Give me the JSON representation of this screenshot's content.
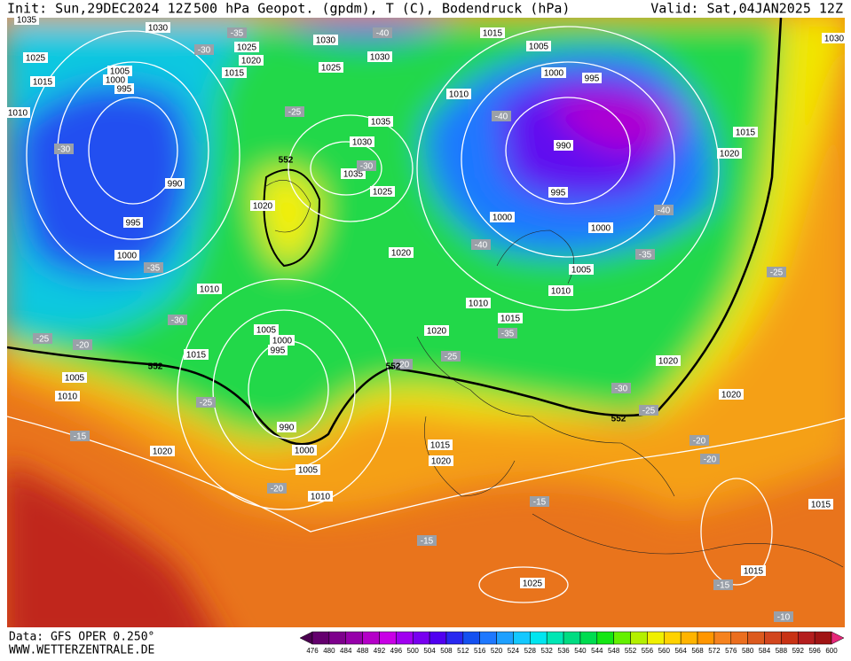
{
  "header": {
    "init": "Init: Sun,29DEC2024 12Z",
    "title": "500 hPa Geopot. (gpdm), T (C), Bodendruck (hPa)",
    "valid": "Valid: Sat,04JAN2025 12Z"
  },
  "footer": {
    "data": "Data: GFS OPER 0.250°",
    "site": "WWW.WETTERZENTRALE.DE"
  },
  "pressure_labels": [
    "1035",
    "1030",
    "1025",
    "1015",
    "1010",
    "1005",
    "1000",
    "995",
    "990",
    "995",
    "1000",
    "1010",
    "1015",
    "1005",
    "1010",
    "1020",
    "1010",
    "1005",
    "1000",
    "990",
    "1005",
    "1000",
    "995",
    "1020",
    "1035",
    "1030",
    "1025",
    "1020",
    "1035",
    "1030",
    "1025",
    "1030",
    "1025",
    "1020",
    "1015",
    "1015",
    "1005",
    "1000",
    "995",
    "1010",
    "990",
    "995",
    "1000",
    "1000",
    "1015",
    "1020",
    "1005",
    "1010",
    "1010",
    "1015",
    "1020",
    "1020",
    "1020",
    "1030",
    "1015",
    "1020",
    "1025",
    "1015",
    "1015"
  ],
  "temperature_labels": [
    "-30",
    "-35",
    "-30",
    "-25",
    "-20",
    "-25",
    "-15",
    "-20",
    "-20",
    "-30",
    "-25",
    "-40",
    "-35",
    "-30",
    "-40",
    "-40",
    "-40",
    "-35",
    "-35",
    "-25",
    "-30",
    "-25",
    "-20",
    "-20",
    "-25",
    "-15",
    "-15",
    "-15",
    "-10"
  ],
  "geopotential_labels": [
    "552",
    "552",
    "552",
    "552"
  ],
  "colorbar": {
    "values": [
      476,
      480,
      484,
      488,
      492,
      496,
      500,
      504,
      508,
      512,
      516,
      520,
      524,
      528,
      532,
      536,
      540,
      544,
      548,
      552,
      556,
      560,
      564,
      568,
      572,
      576,
      580,
      584,
      588,
      592,
      596,
      600
    ],
    "colors": [
      "#4b0050",
      "#64006e",
      "#7d008c",
      "#9600aa",
      "#b400c8",
      "#c800e6",
      "#a000f0",
      "#7800f0",
      "#5000f0",
      "#2828f0",
      "#1450f0",
      "#1e78ff",
      "#1ea0ff",
      "#14c8ff",
      "#00e6f0",
      "#00e6b4",
      "#00dc82",
      "#00dc50",
      "#14e614",
      "#64f000",
      "#b4f000",
      "#f0f000",
      "#ffd200",
      "#ffb400",
      "#ff9600",
      "#f5821e",
      "#eb6e1e",
      "#dc5a1e",
      "#d2461e",
      "#c83214",
      "#b41e1e",
      "#a01414",
      "#e6287a"
    ]
  }
}
